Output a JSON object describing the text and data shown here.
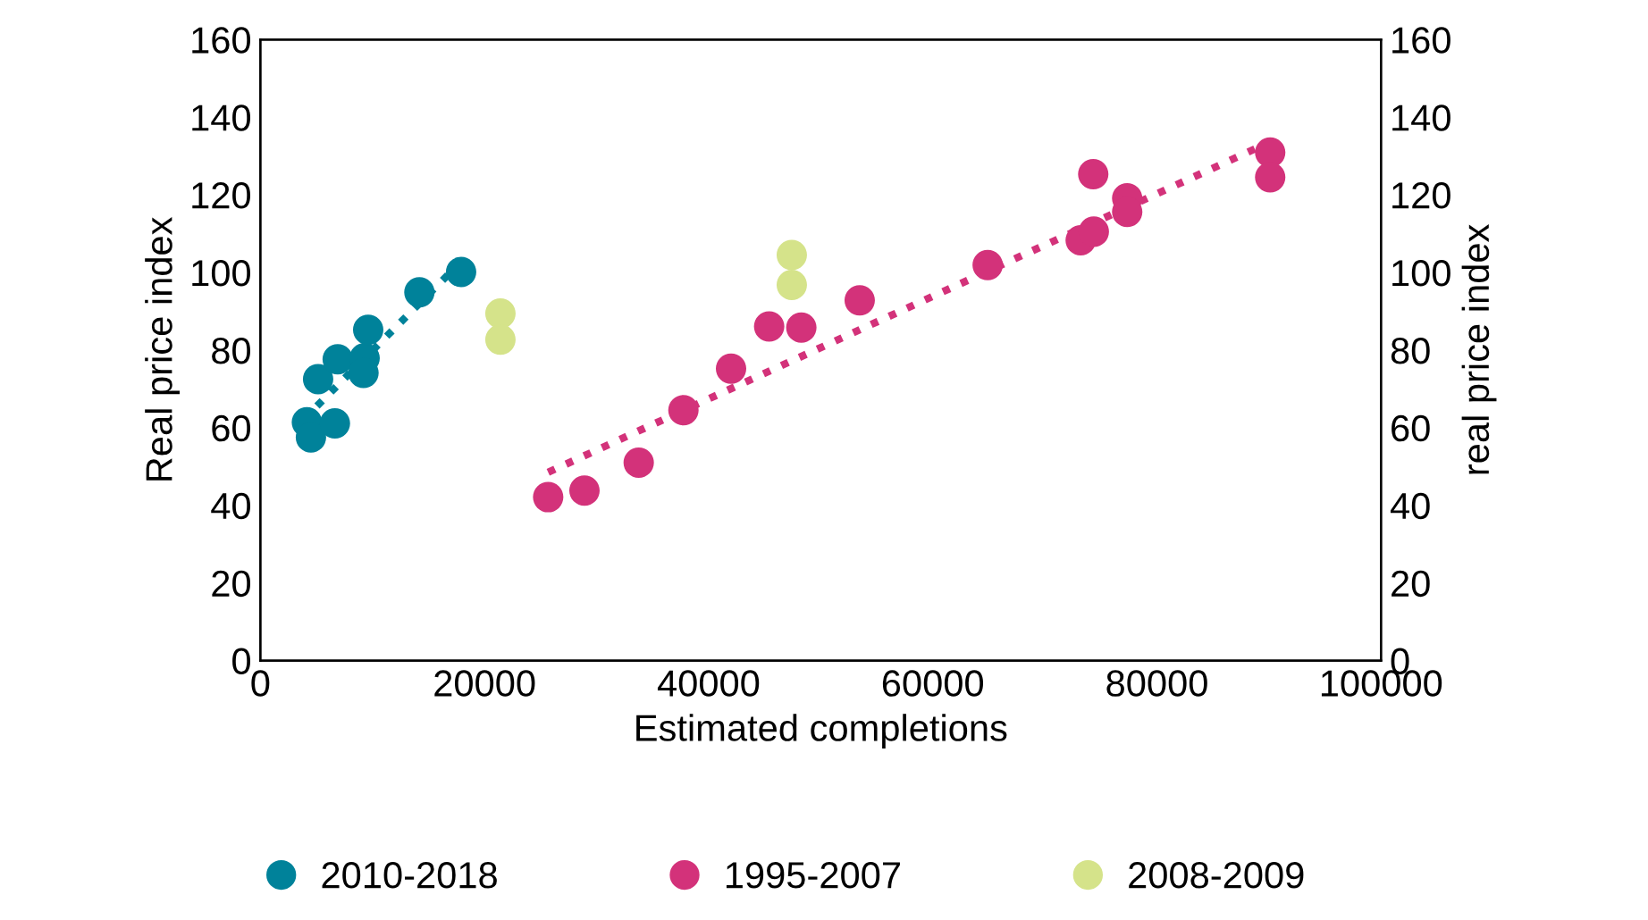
{
  "chart_data": {
    "type": "scatter",
    "xlabel": "Estimated completions",
    "ylabel": "Real price index",
    "y2label": "real price index",
    "xlim": [
      0,
      100000
    ],
    "xticks": [
      0,
      20000,
      40000,
      60000,
      80000,
      100000
    ],
    "ylim": [
      0,
      160
    ],
    "yticks": [
      0,
      20,
      40,
      60,
      80,
      100,
      120,
      140,
      160
    ],
    "y2lim": [
      0,
      160
    ],
    "y2ticks": [
      0,
      20,
      40,
      60,
      80,
      100,
      120,
      140,
      160
    ],
    "grid": false,
    "legend": "bottom",
    "marker": "circle",
    "series": [
      {
        "name": "2010-2018",
        "color": "#00829a",
        "x": [
          4150,
          4510,
          6650,
          5150,
          6900,
          9300,
          9200,
          9620,
          14190,
          17910
        ],
        "values": [
          61.4,
          57.5,
          61.1,
          72.5,
          77.6,
          77.9,
          74.1,
          85.2,
          94.9,
          100.1
        ]
      },
      {
        "name": "1995-2007",
        "color": "#d3327a",
        "x": [
          25680,
          28920,
          33760,
          37750,
          42000,
          45400,
          48270,
          53480,
          64900,
          73200,
          74370,
          74320,
          77350,
          77350,
          90110,
          90110
        ],
        "values": [
          42.1,
          43.8,
          51.0,
          64.5,
          75.2,
          86.1,
          85.8,
          92.8,
          101.9,
          108.3,
          110.5,
          125.3,
          119.1,
          115.6,
          130.9,
          124.5
        ]
      },
      {
        "name": "2008-2009",
        "color": "#d5e38a",
        "x": [
          21420,
          21420,
          47420,
          47420
        ],
        "values": [
          89.4,
          82.7,
          104.5,
          96.8
        ]
      },
      {
        "type": "line",
        "color": "#00829a",
        "line_style": "dotted",
        "marker": "none",
        "x": [
          5050,
          16750
        ],
        "values": [
          65.6,
          99.4
        ]
      },
      {
        "type": "line",
        "color": "#d3327a",
        "line_style": "dotted",
        "marker": "none",
        "x": [
          25680,
          89040
        ],
        "values": [
          48.5,
          132.2
        ]
      }
    ]
  }
}
